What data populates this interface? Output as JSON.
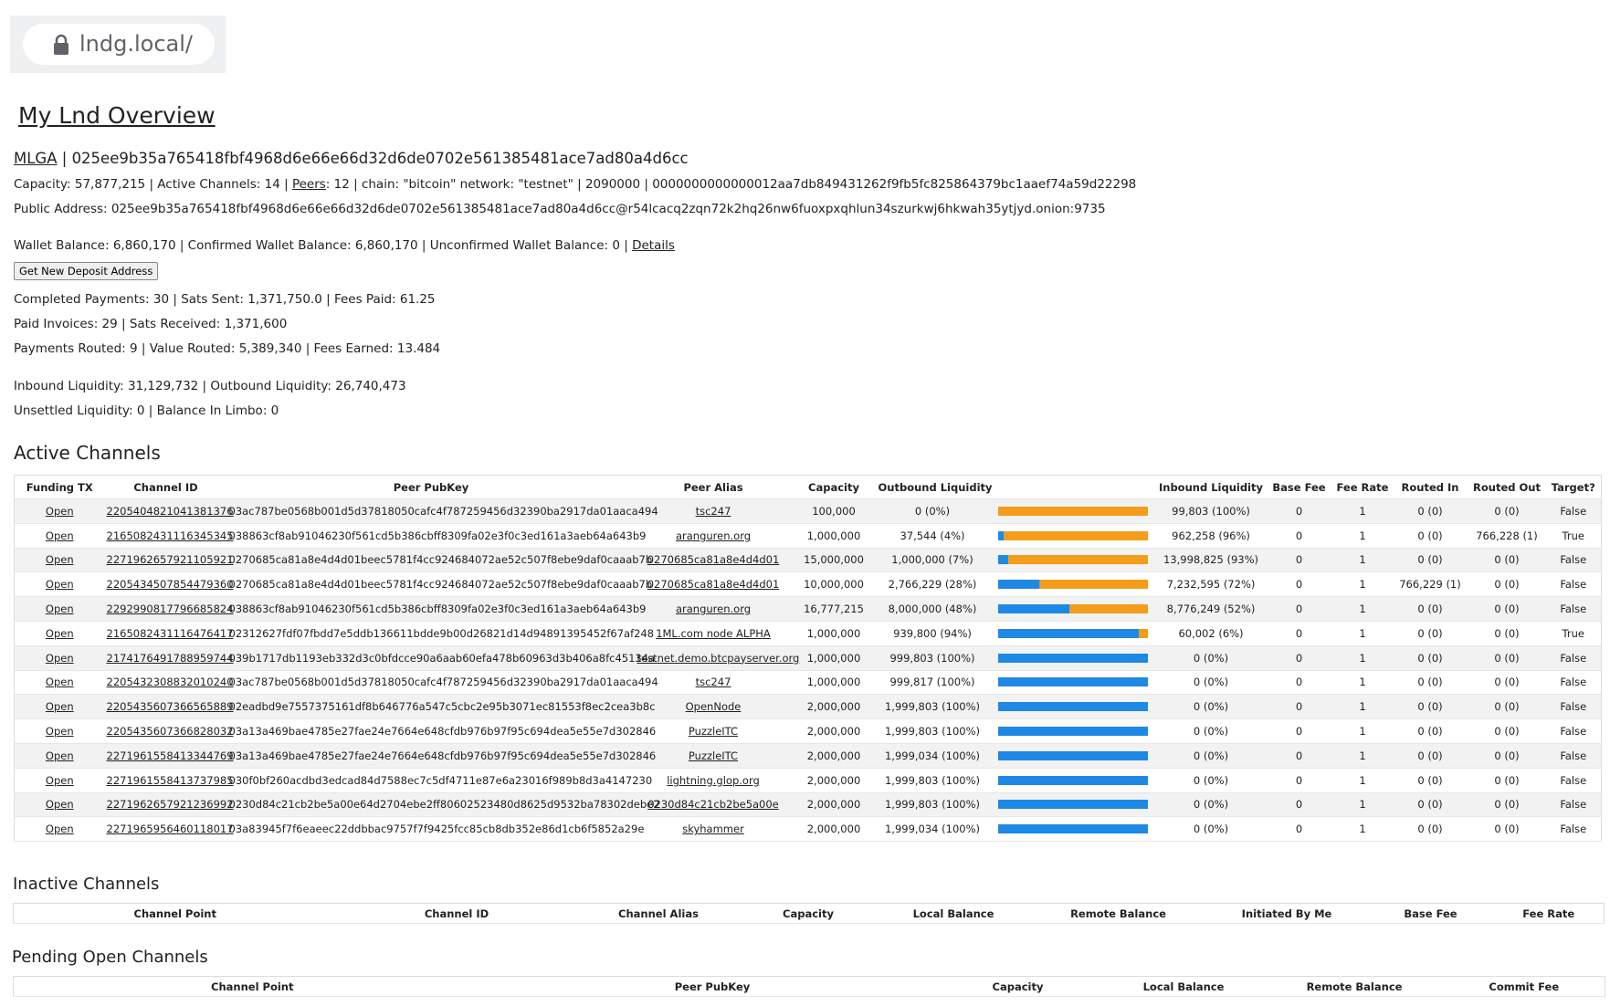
{
  "browser": {
    "url": "lndg.local/"
  },
  "header": {
    "title": "My Lnd Overview"
  },
  "summary": {
    "node_line": {
      "alias": "MLGA",
      "rest": " | 025ee9b35a765418fbf4968d6e66e66d32d6de0702e561385481ace7ad80a4d6cc"
    },
    "network_line": {
      "before": "Capacity: 57,877,215 | Active Channels: 14 | ",
      "link": "Peers",
      "after": ": 12 | chain: \"bitcoin\" network: \"testnet\" | 2090000 | 0000000000000012aa7db849431262f9fb5fc825864379bc1aaef74a59d22298"
    },
    "public_address": "Public Address: 025ee9b35a765418fbf4968d6e66e66d32d6de0702e561385481ace7ad80a4d6cc@r54lcacq2zqn72k2hq26nw6fuoxpxqhlun34szurkwj6hkwah35ytjyd.onion:9735",
    "wallet_line": {
      "before": "Wallet Balance: 6,860,170 | Confirmed Wallet Balance: 6,860,170 | Unconfirmed Wallet Balance: 0 | ",
      "link": "Details"
    },
    "deposit_button": "Get New Deposit Address",
    "payments": [
      "Completed Payments: 30 | Sats Sent: 1,371,750.0 | Fees Paid: 61.25",
      "Paid Invoices: 29 | Sats Received: 1,371,600",
      "Payments Routed: 9 | Value Routed: 5,389,340 | Fees Earned: 13.484"
    ],
    "liquidity": [
      "Inbound Liquidity: 31,129,732 | Outbound Liquidity: 26,740,473",
      "Unsettled Liquidity: 0 | Balance In Limbo: 0"
    ]
  },
  "active_channels": {
    "title": "Active Channels",
    "columns": [
      "Funding TX",
      "Channel ID",
      "Peer PubKey",
      "Peer Alias",
      "Capacity",
      "Outbound Liquidity",
      "Inbound Liquidity",
      "Base Fee",
      "Fee Rate",
      "Routed In",
      "Routed Out",
      "Target?"
    ],
    "rows": [
      [
        "Open",
        "2205404821041381376",
        "03ac787be0568b001d5d37818050cafc4f787259456d32390ba2917da01aaca494",
        "tsc247",
        "100,000",
        "0 (0%)",
        "99,803 (100%)",
        "0",
        "1",
        "0 (0)",
        "0 (0)",
        "False"
      ],
      [
        "Open",
        "2165082431116345345",
        "038863cf8ab91046230f561cd5b386cbff8309fa02e3f0c3ed161a3aeb64a643b9",
        "aranguren.org",
        "1,000,000",
        "37,544 (4%)",
        "962,258 (96%)",
        "0",
        "1",
        "0 (0)",
        "766,228 (1)",
        "True"
      ],
      [
        "Open",
        "2271962657921105921",
        "0270685ca81a8e4d4d01beec5781f4cc924684072ae52c507f8ebe9daf0caaab7b",
        "0270685ca81a8e4d4d01",
        "15,000,000",
        "1,000,000 (7%)",
        "13,998,825 (93%)",
        "0",
        "1",
        "0 (0)",
        "0 (0)",
        "False"
      ],
      [
        "Open",
        "2205434507854479360",
        "0270685ca81a8e4d4d01beec5781f4cc924684072ae52c507f8ebe9daf0caaab7b",
        "0270685ca81a8e4d4d01",
        "10,000,000",
        "2,766,229 (28%)",
        "7,232,595 (72%)",
        "0",
        "1",
        "766,229 (1)",
        "0 (0)",
        "False"
      ],
      [
        "Open",
        "2292990817796685824",
        "038863cf8ab91046230f561cd5b386cbff8309fa02e3f0c3ed161a3aeb64a643b9",
        "aranguren.org",
        "16,777,215",
        "8,000,000 (48%)",
        "8,776,249 (52%)",
        "0",
        "1",
        "0 (0)",
        "0 (0)",
        "False"
      ],
      [
        "Open",
        "2165082431116476417",
        "02312627fdf07fbdd7e5ddb136611bdde9b00d26821d14d94891395452f67af248",
        "1ML.com node ALPHA",
        "1,000,000",
        "939,800 (94%)",
        "60,002 (6%)",
        "0",
        "1",
        "0 (0)",
        "0 (0)",
        "True"
      ],
      [
        "Open",
        "2174176491788959744",
        "039b1717db1193eb332d3c0bfdcce90a6aab60efa478b60963d3b406a8fc45134a",
        "testnet.demo.btcpayserver.org",
        "1,000,000",
        "999,803 (100%)",
        "0 (0%)",
        "0",
        "1",
        "0 (0)",
        "0 (0)",
        "False"
      ],
      [
        "Open",
        "2205432308832010240",
        "03ac787be0568b001d5d37818050cafc4f787259456d32390ba2917da01aaca494",
        "tsc247",
        "1,000,000",
        "999,817 (100%)",
        "0 (0%)",
        "0",
        "1",
        "0 (0)",
        "0 (0)",
        "False"
      ],
      [
        "Open",
        "2205435607366565889",
        "02eadbd9e7557375161df8b646776a547c5cbc2e95b3071ec81553f8ec2cea3b8c",
        "OpenNode",
        "2,000,000",
        "1,999,803 (100%)",
        "0 (0%)",
        "0",
        "1",
        "0 (0)",
        "0 (0)",
        "False"
      ],
      [
        "Open",
        "2205435607366828032",
        "03a13a469bae4785e27fae24e7664e648cfdb976b97f95c694dea5e55e7d302846",
        "PuzzleITC",
        "2,000,000",
        "1,999,803 (100%)",
        "0 (0%)",
        "0",
        "1",
        "0 (0)",
        "0 (0)",
        "False"
      ],
      [
        "Open",
        "2271961558413344769",
        "03a13a469bae4785e27fae24e7664e648cfdb976b97f95c694dea5e55e7d302846",
        "PuzzleITC",
        "2,000,000",
        "1,999,034 (100%)",
        "0 (0%)",
        "0",
        "1",
        "0 (0)",
        "0 (0)",
        "False"
      ],
      [
        "Open",
        "2271961558413737985",
        "030f0bf260acdbd3edcad84d7588ec7c5df4711e87e6a23016f989b8d3a4147230",
        "lightning.glop.org",
        "2,000,000",
        "1,999,803 (100%)",
        "0 (0%)",
        "0",
        "1",
        "0 (0)",
        "0 (0)",
        "False"
      ],
      [
        "Open",
        "2271962657921236992",
        "0230d84c21cb2be5a00e64d2704ebe2ff80602523480d8625d9532ba78302debe2",
        "0230d84c21cb2be5a00e",
        "2,000,000",
        "1,999,803 (100%)",
        "0 (0%)",
        "0",
        "1",
        "0 (0)",
        "0 (0)",
        "False"
      ],
      [
        "Open",
        "2271965956460118017",
        "03a83945f7f6eaeec22ddbbac9757f7f9425fcc85cb8db352e86d1cb6f5852a29e",
        "skyhammer",
        "2,000,000",
        "1,999,034 (100%)",
        "0 (0%)",
        "0",
        "1",
        "0 (0)",
        "0 (0)",
        "False"
      ]
    ]
  },
  "inactive_channels": {
    "title": "Inactive Channels",
    "columns": [
      "Channel Point",
      "Channel ID",
      "Channel Alias",
      "Capacity",
      "Local Balance",
      "Remote Balance",
      "Initiated By Me",
      "Base Fee",
      "Fee Rate"
    ]
  },
  "pending_open_channels": {
    "title": "Pending Open Channels",
    "columns": [
      "Channel Point",
      "Peer PubKey",
      "Capacity",
      "Local Balance",
      "Remote Balance",
      "Commit Fee"
    ]
  }
}
